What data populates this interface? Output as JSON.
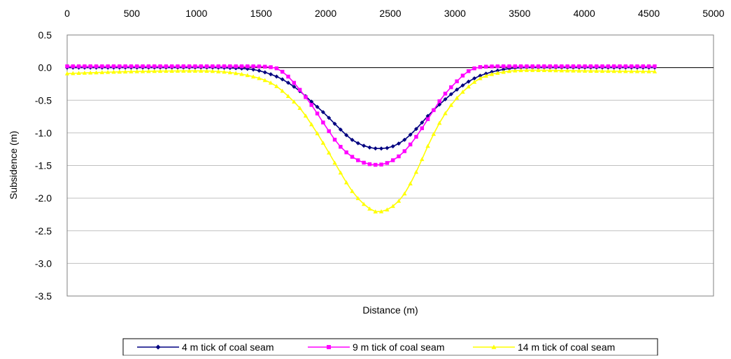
{
  "chart_data": {
    "type": "line",
    "xlabel": "Distance (m)",
    "ylabel": "Subsidence (m)",
    "xlim": [
      0,
      5000
    ],
    "ylim": [
      -3.5,
      0.5
    ],
    "x_ticks": [
      "0",
      "500",
      "1000",
      "1500",
      "2000",
      "2500",
      "3000",
      "3500",
      "4000",
      "4500",
      "5000"
    ],
    "y_ticks": [
      "0.5",
      "0.0",
      "-0.5",
      "-1.0",
      "-1.5",
      "-2.0",
      "-2.5",
      "-3.0",
      "-3.5"
    ],
    "x_axis_position": "top",
    "grid": "horizontal",
    "legend_position": "bottom",
    "x": [
      0,
      500,
      1000,
      1400,
      1600,
      1700,
      1800,
      1900,
      2000,
      2100,
      2200,
      2300,
      2400,
      2500,
      2600,
      2700,
      2800,
      2900,
      3000,
      3100,
      3200,
      3400,
      3600,
      4000,
      4560
    ],
    "series": [
      {
        "name": "4 m tick of coal seam",
        "color": "#000080",
        "marker": "diamond",
        "values": [
          0.0,
          0.0,
          0.0,
          -0.02,
          -0.12,
          -0.22,
          -0.36,
          -0.54,
          -0.72,
          -0.92,
          -1.1,
          -1.2,
          -1.24,
          -1.22,
          -1.12,
          -0.94,
          -0.72,
          -0.53,
          -0.36,
          -0.22,
          -0.12,
          -0.02,
          0.0,
          0.0,
          0.0
        ]
      },
      {
        "name": "9 m tick of coal seam",
        "color": "#FF00FF",
        "marker": "square",
        "values": [
          0.02,
          0.02,
          0.02,
          0.02,
          0.0,
          -0.12,
          -0.34,
          -0.6,
          -0.9,
          -1.18,
          -1.36,
          -1.46,
          -1.49,
          -1.44,
          -1.3,
          -1.06,
          -0.76,
          -0.46,
          -0.24,
          -0.06,
          0.01,
          0.02,
          0.02,
          0.02,
          0.02
        ]
      },
      {
        "name": "14 m tick of coal seam",
        "color": "#FFFF00",
        "marker": "triangle",
        "values": [
          -0.09,
          -0.06,
          -0.05,
          -0.12,
          -0.26,
          -0.42,
          -0.62,
          -0.9,
          -1.22,
          -1.56,
          -1.88,
          -2.1,
          -2.21,
          -2.15,
          -1.96,
          -1.6,
          -1.16,
          -0.78,
          -0.5,
          -0.3,
          -0.16,
          -0.06,
          -0.04,
          -0.05,
          -0.06
        ]
      }
    ]
  }
}
